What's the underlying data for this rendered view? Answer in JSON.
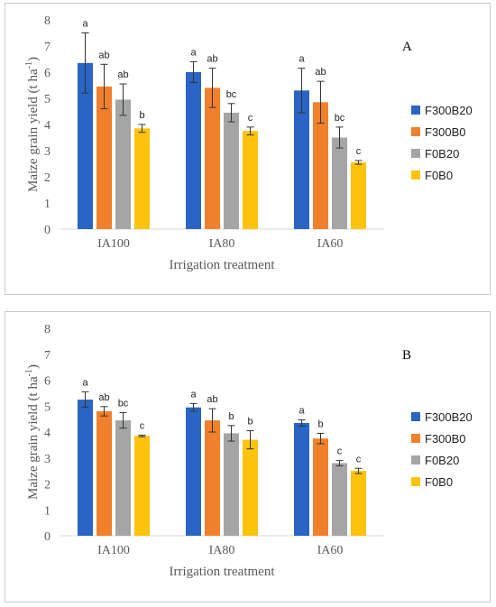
{
  "chart_data": [
    {
      "type": "bar",
      "panel_label": "A",
      "xlabel": "Irrigation treatment",
      "ylabel_main": "Maize grain yield (",
      "ylabel_unit": "t ha",
      "ylabel_exp": "-1",
      "ylabel_close": ")",
      "ylim": [
        0,
        8
      ],
      "yticks": [
        "0",
        "1",
        "2",
        "3",
        "4",
        "5",
        "6",
        "7",
        "8"
      ],
      "categories": [
        "IA100",
        "IA80",
        "IA60"
      ],
      "legend_position": "right",
      "series": [
        {
          "name": "F300B20",
          "color": "#2a64c5",
          "values": [
            6.35,
            6.0,
            5.3
          ],
          "errors": [
            1.15,
            0.4,
            0.85
          ],
          "letters": [
            "a",
            "a",
            "a"
          ]
        },
        {
          "name": "F300B0",
          "color": "#f0802b",
          "values": [
            5.45,
            5.4,
            4.85
          ],
          "errors": [
            0.85,
            0.75,
            0.8
          ],
          "letters": [
            "ab",
            "ab",
            "ab"
          ]
        },
        {
          "name": "F0B20",
          "color": "#a5a5a5",
          "values": [
            4.95,
            4.45,
            3.5
          ],
          "errors": [
            0.6,
            0.35,
            0.4
          ],
          "letters": [
            "ab",
            "bc",
            "bc"
          ]
        },
        {
          "name": "F0B0",
          "color": "#fcc30b",
          "values": [
            3.85,
            3.75,
            2.55
          ],
          "errors": [
            0.15,
            0.15,
            0.07
          ],
          "letters": [
            "b",
            "c",
            "c"
          ]
        }
      ]
    },
    {
      "type": "bar",
      "panel_label": "B",
      "xlabel": "Irrigation treatment",
      "ylabel_main": "Maize grain yield (",
      "ylabel_unit": "t ha",
      "ylabel_exp": "-1",
      "ylabel_close": ")",
      "ylim": [
        0,
        8
      ],
      "yticks": [
        "0",
        "1",
        "2",
        "3",
        "4",
        "5",
        "6",
        "7",
        "8"
      ],
      "categories": [
        "IA100",
        "IA80",
        "IA60"
      ],
      "legend_position": "right",
      "series": [
        {
          "name": "F300B20",
          "color": "#2a64c5",
          "values": [
            5.25,
            4.95,
            4.35
          ],
          "errors": [
            0.3,
            0.15,
            0.12
          ],
          "letters": [
            "a",
            "a",
            "a"
          ]
        },
        {
          "name": "F300B0",
          "color": "#f0802b",
          "values": [
            4.8,
            4.45,
            3.75
          ],
          "errors": [
            0.18,
            0.45,
            0.2
          ],
          "letters": [
            "ab",
            "ab",
            "b"
          ]
        },
        {
          "name": "F0B20",
          "color": "#a5a5a5",
          "values": [
            4.45,
            3.95,
            2.8
          ],
          "errors": [
            0.3,
            0.3,
            0.1
          ],
          "letters": [
            "bc",
            "b",
            "c"
          ]
        },
        {
          "name": "F0B0",
          "color": "#fcc30b",
          "values": [
            3.85,
            3.7,
            2.5
          ],
          "errors": [
            0.03,
            0.35,
            0.1
          ],
          "letters": [
            "c",
            "b",
            "c"
          ]
        }
      ]
    }
  ]
}
